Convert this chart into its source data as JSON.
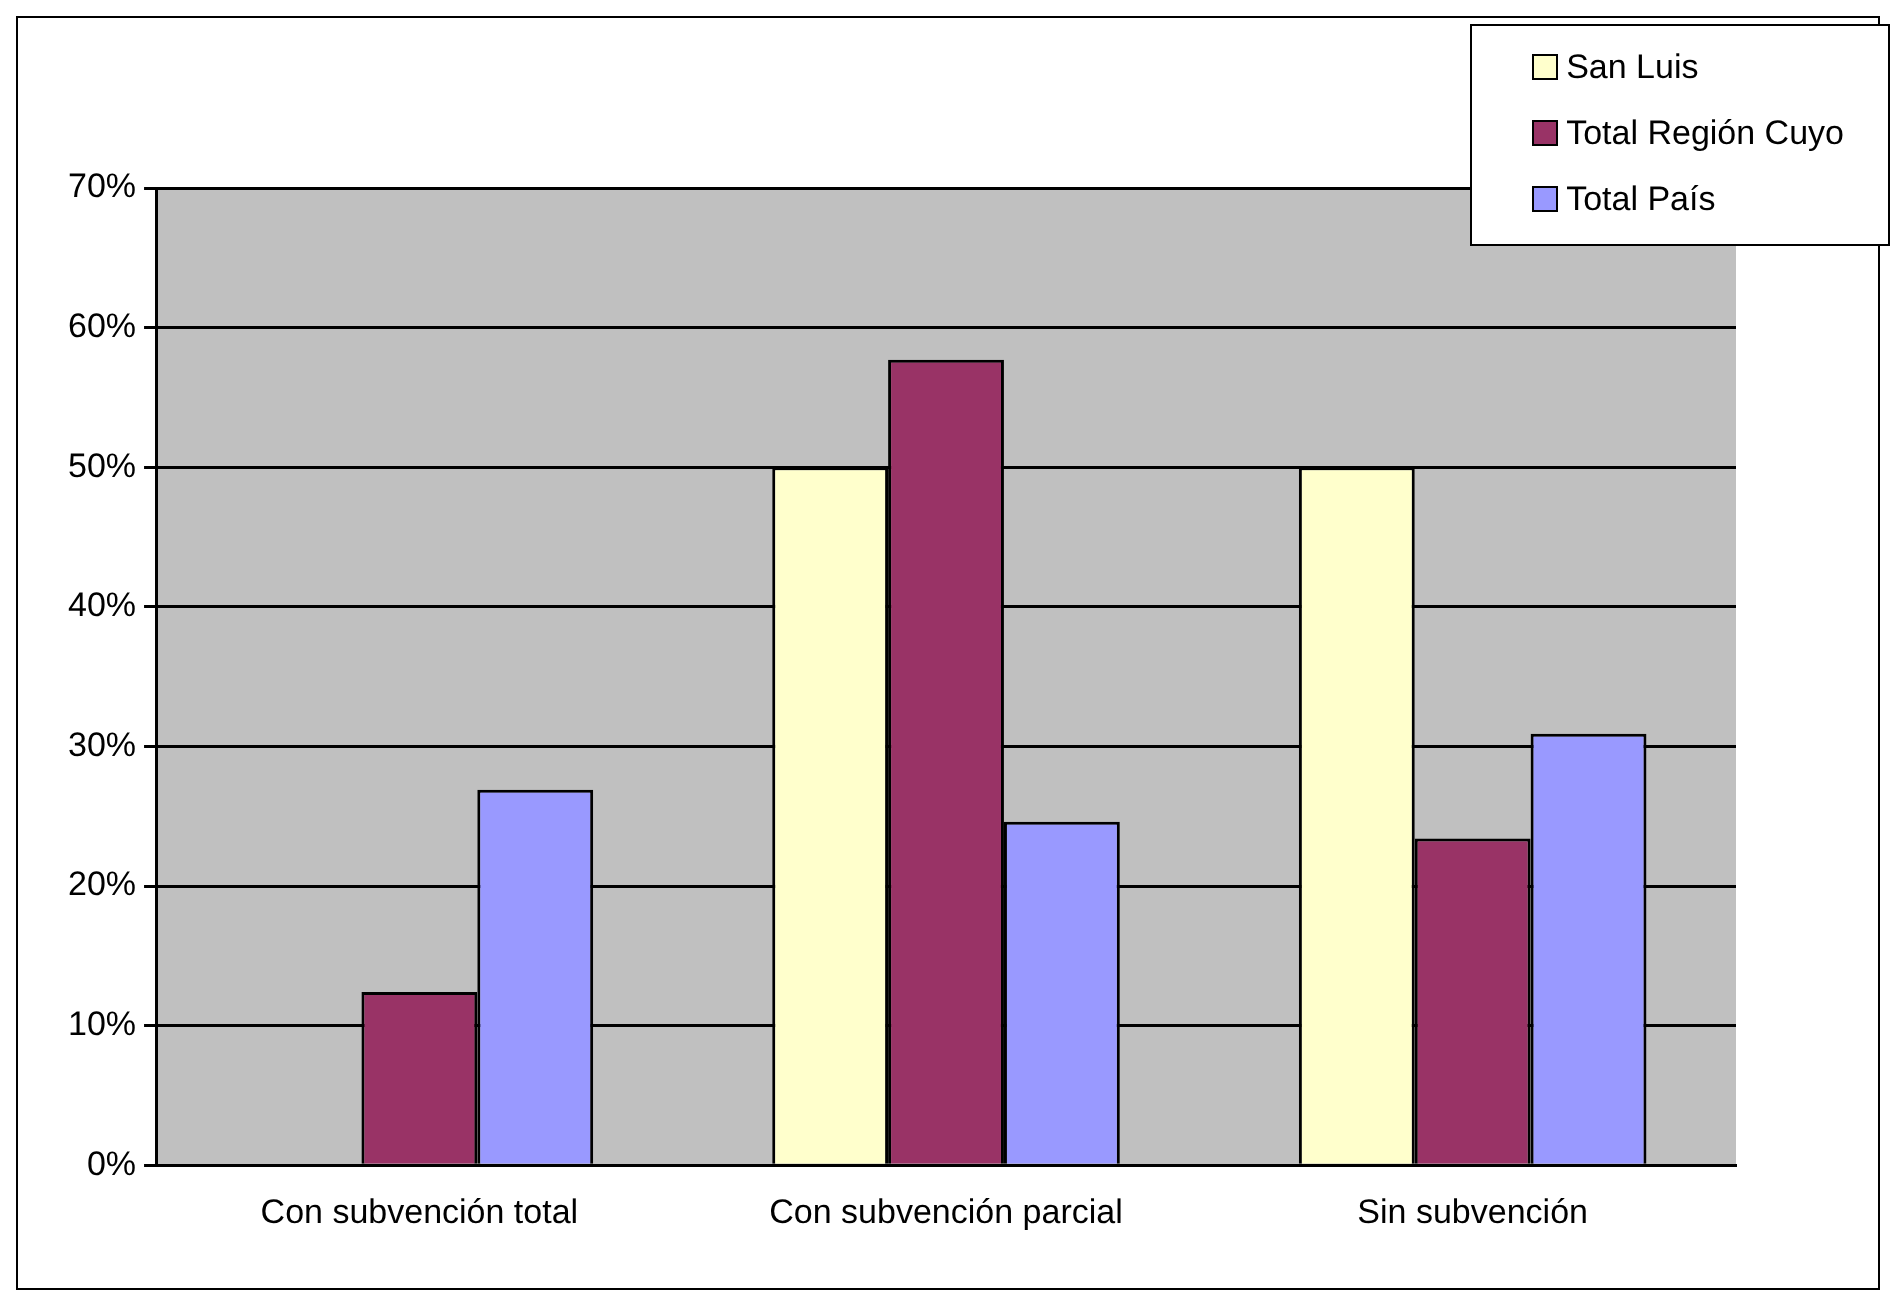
{
  "chart_data": {
    "type": "bar",
    "categories": [
      "Con subvención total",
      "Con subvención parcial",
      "Sin subvención"
    ],
    "series": [
      {
        "name": "San Luis",
        "color": "#ffffcc",
        "values": [
          0,
          50,
          50
        ]
      },
      {
        "name": "Total Región Cuyo",
        "color": "#993366",
        "values": [
          12.4,
          57.7,
          23.4
        ]
      },
      {
        "name": "Total País",
        "color": "#9999ff",
        "values": [
          26.9,
          24.6,
          30.9
        ]
      }
    ],
    "ylim": [
      0,
      70
    ],
    "yticks": [
      {
        "value": 0,
        "label": "0%"
      },
      {
        "value": 10,
        "label": "10%"
      },
      {
        "value": 20,
        "label": "20%"
      },
      {
        "value": 30,
        "label": "30%"
      },
      {
        "value": 40,
        "label": "40%"
      },
      {
        "value": 50,
        "label": "50%"
      },
      {
        "value": 60,
        "label": "60%"
      },
      {
        "value": 70,
        "label": "70%"
      }
    ],
    "grid": "y",
    "legend": "top right"
  }
}
